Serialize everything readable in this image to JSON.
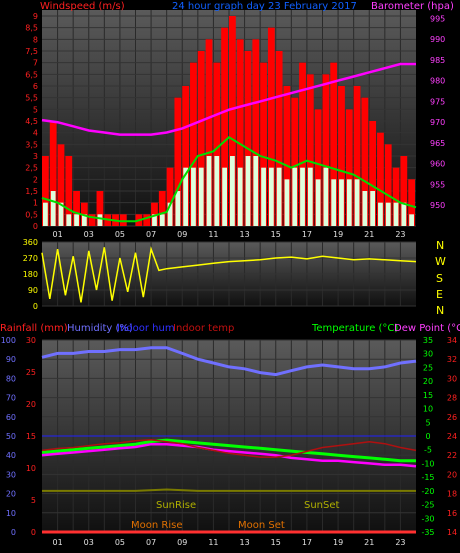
{
  "header": {
    "left": "Windspeed (m/s)",
    "center": "24 hour graph day   23 February 2017",
    "right": "Barometer (hpa)"
  },
  "mid": {
    "compass": [
      "N",
      "W",
      "S",
      "E",
      "N"
    ]
  },
  "bottom_header": {
    "rainfall": "Rainfall (mm)",
    "humidity": "Humidity (%)",
    "indoor_hum": "Indoor hum",
    "indoor_temp": "Indoor temp",
    "temperature": "Temperature (°C)",
    "dewpoint": "Dew Point (°C)"
  },
  "annotations": {
    "sunrise": "SunRise",
    "sunset": "SunSet",
    "moonrise": "Moon Rise",
    "moonset": "Moon Set"
  },
  "colors": {
    "wind_red": "#ff0000",
    "gust_white": "#ddffdd",
    "avg_green": "#00dd00",
    "barometer": "#ff00ff",
    "direction": "#ffff00",
    "humidity": "#7070ff",
    "temp": "#00ff00",
    "dew": "#ff00ff",
    "indoor": "#b01010",
    "sun": "#7a7a00"
  },
  "chart_data": [
    {
      "type": "bar",
      "title": "24 hour graph day   23 February 2017",
      "ylabel": "Windspeed (m/s)",
      "ylim": [
        0,
        9
      ],
      "y_ticks": [
        "0",
        "0,5",
        "1",
        "1,5",
        "2",
        "2,5",
        "3",
        "3,5",
        "4",
        "4,5",
        "5",
        "5,5",
        "6",
        "6,5",
        "7",
        "7,5",
        "8",
        "8,5",
        "9"
      ],
      "x_ticks": [
        "01",
        "03",
        "05",
        "07",
        "09",
        "11",
        "13",
        "15",
        "17",
        "19",
        "21",
        "23"
      ],
      "xlim": [
        0,
        24
      ],
      "series": [
        {
          "name": "Windspeed (m/s)",
          "hours": [
            0,
            0.5,
            1,
            1.5,
            2,
            2.5,
            3,
            3.5,
            4,
            4.5,
            5,
            5.5,
            6,
            6.5,
            7,
            7.5,
            8,
            8.5,
            9,
            9.5,
            10,
            10.5,
            11,
            11.5,
            12,
            12.5,
            13,
            13.5,
            14,
            14.5,
            15,
            15.5,
            16,
            16.5,
            17,
            17.5,
            18,
            18.5,
            19,
            19.5,
            20,
            20.5,
            21,
            21.5,
            22,
            22.5,
            23,
            23.5
          ],
          "values": [
            3.0,
            4.5,
            3.5,
            3.0,
            1.5,
            1.0,
            0.5,
            1.5,
            0.5,
            0.5,
            0.5,
            0.0,
            0.5,
            0.5,
            1.0,
            1.5,
            2.5,
            5.5,
            6.0,
            7.0,
            7.5,
            8.0,
            7.0,
            8.5,
            9.0,
            8.0,
            7.5,
            8.0,
            7.0,
            8.5,
            7.5,
            6.0,
            5.5,
            7.0,
            6.5,
            5.0,
            6.5,
            7.0,
            6.0,
            5.0,
            6.0,
            5.5,
            4.5,
            4.0,
            3.5,
            2.5,
            3.0,
            2.0
          ]
        },
        {
          "name": "gust",
          "hours": [
            0,
            0.5,
            1,
            1.5,
            2,
            2.5,
            3,
            3.5,
            4,
            4.5,
            5,
            5.5,
            6,
            6.5,
            7,
            7.5,
            8,
            8.5,
            9,
            9.5,
            10,
            10.5,
            11,
            11.5,
            12,
            12.5,
            13,
            13.5,
            14,
            14.5,
            15,
            15.5,
            16,
            16.5,
            17,
            17.5,
            18,
            18.5,
            19,
            19.5,
            20,
            20.5,
            21,
            21.5,
            22,
            22.5,
            23,
            23.5
          ],
          "values": [
            1.0,
            1.5,
            1.0,
            0.5,
            0.5,
            0.5,
            0.0,
            0.5,
            0.0,
            0.0,
            0.0,
            0.0,
            0.0,
            0.0,
            0.5,
            0.5,
            1.0,
            1.5,
            2.5,
            2.5,
            2.5,
            3.0,
            3.0,
            2.5,
            3.0,
            2.5,
            3.0,
            3.0,
            2.5,
            2.5,
            2.5,
            2.0,
            2.5,
            2.5,
            2.5,
            2.0,
            2.5,
            2.0,
            2.0,
            2.0,
            2.0,
            1.5,
            1.5,
            1.0,
            1.0,
            1.0,
            1.0,
            0.5
          ]
        },
        {
          "name": "average",
          "hours": [
            0,
            1,
            2,
            3,
            4,
            5,
            6,
            7,
            8,
            9,
            10,
            11,
            12,
            13,
            14,
            15,
            16,
            17,
            18,
            19,
            20,
            21,
            22,
            23,
            24
          ],
          "values": [
            1.2,
            1.0,
            0.6,
            0.4,
            0.3,
            0.2,
            0.2,
            0.4,
            0.6,
            2.0,
            3.0,
            3.2,
            3.8,
            3.4,
            3.0,
            2.8,
            2.5,
            2.8,
            2.6,
            2.4,
            2.2,
            1.8,
            1.4,
            1.0,
            0.8
          ]
        }
      ]
    },
    {
      "type": "line",
      "ylabel": "Barometer (hpa)",
      "ylim": [
        945,
        997
      ],
      "y_ticks": [
        "950",
        "955",
        "960",
        "965",
        "970",
        "975",
        "980",
        "985",
        "990",
        "995"
      ],
      "series": [
        {
          "name": "Barometer (hpa)",
          "x": [
            0,
            1,
            2,
            3,
            4,
            5,
            6,
            7,
            8,
            9,
            10,
            11,
            12,
            13,
            14,
            15,
            16,
            17,
            18,
            19,
            20,
            21,
            22,
            23,
            24
          ],
          "values": [
            970.5,
            970.0,
            969.0,
            968.0,
            967.5,
            967.0,
            967.0,
            967.0,
            967.5,
            968.5,
            970.0,
            971.5,
            973.0,
            974.0,
            975.0,
            976.0,
            977.0,
            978.0,
            979.0,
            980.0,
            981.0,
            982.0,
            983.0,
            984.0,
            984.0
          ]
        }
      ]
    },
    {
      "type": "line",
      "ylim": [
        0,
        360
      ],
      "y_ticks": [
        "0",
        "90",
        "180",
        "270",
        "360"
      ],
      "series": [
        {
          "name": "direction",
          "x": [
            0,
            0.5,
            1,
            1.5,
            2,
            2.5,
            3,
            3.5,
            4,
            4.5,
            5,
            5.5,
            6,
            6.5,
            7,
            7.5,
            8,
            9,
            10,
            11,
            12,
            13,
            14,
            15,
            16,
            17,
            18,
            19,
            20,
            21,
            22,
            23,
            24
          ],
          "values": [
            300,
            40,
            320,
            60,
            280,
            20,
            310,
            90,
            330,
            30,
            270,
            80,
            300,
            50,
            320,
            200,
            210,
            220,
            230,
            240,
            250,
            255,
            260,
            270,
            275,
            265,
            280,
            270,
            260,
            265,
            260,
            255,
            250
          ]
        }
      ]
    },
    {
      "type": "line",
      "xlim": [
        0,
        24
      ],
      "x_ticks": [
        "01",
        "03",
        "05",
        "07",
        "09",
        "11",
        "13",
        "15",
        "17",
        "19",
        "21",
        "23"
      ],
      "left_axis": {
        "ticks_humidity": [
          "0",
          "10",
          "20",
          "30",
          "40",
          "50",
          "60",
          "70",
          "80",
          "90",
          "100"
        ],
        "ticks_rain": [
          "0",
          "5",
          "10",
          "15",
          "20",
          "25",
          "30"
        ],
        "ylim": [
          0,
          100
        ]
      },
      "right_axis_temp": {
        "ticks": [
          "-35",
          "-30",
          "-25",
          "-20",
          "-15",
          "-10",
          "-5",
          "0",
          "5",
          "10",
          "15",
          "20",
          "25",
          "30",
          "35"
        ],
        "ylim": [
          -35,
          35
        ]
      },
      "right_axis_indoor": {
        "ticks": [
          "14",
          "16",
          "18",
          "20",
          "22",
          "24",
          "26",
          "28",
          "30",
          "32",
          "34"
        ],
        "ylim": [
          14,
          34
        ]
      },
      "series": [
        {
          "name": "Humidity (%)",
          "axis": "left",
          "x": [
            0,
            1,
            2,
            3,
            4,
            5,
            6,
            7,
            8,
            9,
            10,
            11,
            12,
            13,
            14,
            15,
            16,
            17,
            18,
            19,
            20,
            21,
            22,
            23,
            24
          ],
          "values": [
            91,
            93,
            93,
            94,
            94,
            95,
            95,
            96,
            96,
            93,
            90,
            88,
            86,
            85,
            83,
            82,
            84,
            86,
            87,
            86,
            85,
            85,
            86,
            88,
            89
          ]
        },
        {
          "name": "Temperature (°C)",
          "axis": "right_temp",
          "x": [
            0,
            1,
            2,
            3,
            4,
            5,
            6,
            7,
            8,
            9,
            10,
            11,
            12,
            13,
            14,
            15,
            16,
            17,
            18,
            19,
            20,
            21,
            22,
            23,
            24
          ],
          "values": [
            -6.0,
            -5.5,
            -5.0,
            -4.5,
            -4.0,
            -3.5,
            -3.0,
            -2.0,
            -1.5,
            -2.0,
            -2.5,
            -3.0,
            -3.5,
            -4.0,
            -4.5,
            -5.0,
            -5.5,
            -6.0,
            -6.5,
            -7.0,
            -7.5,
            -8.0,
            -8.5,
            -9.0,
            -9.0
          ]
        },
        {
          "name": "Dew Point (°C)",
          "axis": "right_temp",
          "x": [
            0,
            1,
            2,
            3,
            4,
            5,
            6,
            7,
            8,
            9,
            10,
            11,
            12,
            13,
            14,
            15,
            16,
            17,
            18,
            19,
            20,
            21,
            22,
            23,
            24
          ],
          "values": [
            -7.0,
            -6.5,
            -6.0,
            -5.5,
            -5.0,
            -4.5,
            -4.0,
            -3.0,
            -3.0,
            -3.5,
            -4.0,
            -5.0,
            -5.5,
            -6.0,
            -6.5,
            -7.0,
            -8.0,
            -8.5,
            -9.0,
            -9.0,
            -9.5,
            -10.0,
            -10.5,
            -10.5,
            -11.0
          ]
        },
        {
          "name": "Indoor temp",
          "axis": "right_indoor",
          "x": [
            0,
            1,
            2,
            3,
            4,
            5,
            6,
            7,
            8,
            9,
            10,
            11,
            12,
            13,
            14,
            15,
            16,
            17,
            18,
            19,
            20,
            21,
            22,
            23,
            24
          ],
          "values": [
            22.5,
            22.7,
            22.8,
            23.0,
            23.2,
            23.3,
            23.5,
            23.6,
            23.4,
            23.2,
            22.8,
            22.5,
            22.2,
            22.0,
            21.8,
            21.8,
            22.0,
            22.4,
            22.8,
            23.0,
            23.2,
            23.4,
            23.2,
            22.8,
            22.5
          ]
        },
        {
          "name": "sun",
          "axis": "right_temp",
          "x": [
            0,
            2,
            4,
            6,
            8,
            10,
            12,
            14,
            16,
            18,
            20,
            22,
            24
          ],
          "values": [
            -20,
            -20,
            -20,
            -20,
            -19.5,
            -20,
            -20,
            -20,
            -20,
            -20,
            -20,
            -20,
            -20
          ]
        },
        {
          "name": "Rainfall (mm)",
          "axis": "left",
          "x": [
            0,
            24
          ],
          "values": [
            0,
            0
          ]
        }
      ]
    }
  ]
}
